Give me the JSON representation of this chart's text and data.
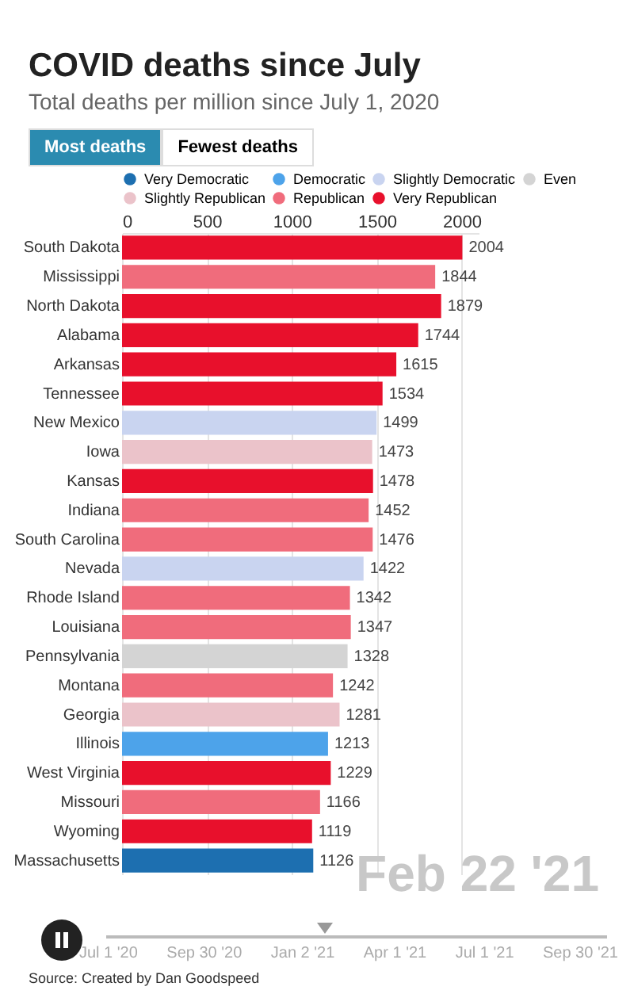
{
  "chart_data": {
    "type": "bar",
    "orientation": "horizontal",
    "title": "COVID deaths since July",
    "subtitle": "Total deaths per million since July 1, 2020",
    "categories": [
      "South Dakota",
      "Mississippi",
      "North Dakota",
      "Alabama",
      "Arkansas",
      "Tennessee",
      "New Mexico",
      "Iowa",
      "Kansas",
      "Indiana",
      "South Carolina",
      "Nevada",
      "Rhode Island",
      "Louisiana",
      "Pennsylvania",
      "Montana",
      "Georgia",
      "Illinois",
      "West Virginia",
      "Missouri",
      "Wyoming",
      "Massachusetts"
    ],
    "series": [
      {
        "name": "Very Democratic",
        "color": "#1d6fb0",
        "values": [
          null,
          null,
          null,
          null,
          null,
          null,
          null,
          null,
          null,
          null,
          null,
          null,
          null,
          null,
          null,
          null,
          null,
          null,
          null,
          null,
          null,
          1126
        ]
      },
      {
        "name": "Democratic",
        "color": "#4da3ea",
        "values": [
          null,
          null,
          null,
          null,
          null,
          null,
          null,
          null,
          null,
          null,
          null,
          null,
          null,
          null,
          null,
          null,
          null,
          1213,
          null,
          null,
          null,
          null
        ]
      },
      {
        "name": "Slightly Democratic",
        "color": "#c9d4f0",
        "values": [
          null,
          null,
          null,
          null,
          null,
          null,
          1499,
          null,
          null,
          null,
          null,
          1422,
          null,
          null,
          null,
          null,
          null,
          null,
          null,
          null,
          null,
          null
        ]
      },
      {
        "name": "Even",
        "color": "#d4d4d4",
        "values": [
          null,
          null,
          null,
          null,
          null,
          null,
          null,
          null,
          null,
          null,
          null,
          null,
          null,
          null,
          1328,
          null,
          null,
          null,
          null,
          null,
          null,
          null
        ]
      },
      {
        "name": "Slightly Republican",
        "color": "#ebc3ca",
        "values": [
          null,
          null,
          null,
          null,
          null,
          null,
          null,
          1473,
          null,
          null,
          null,
          null,
          null,
          null,
          null,
          null,
          1281,
          null,
          null,
          null,
          null,
          null
        ]
      },
      {
        "name": "Republican",
        "color": "#f06c7c",
        "values": [
          null,
          1844,
          null,
          null,
          null,
          null,
          null,
          null,
          null,
          1452,
          1476,
          null,
          1342,
          1347,
          null,
          1242,
          null,
          null,
          null,
          1166,
          null,
          null
        ]
      },
      {
        "name": "Very Republican",
        "color": "#e8102c",
        "values": [
          2004,
          null,
          1879,
          1744,
          1615,
          1534,
          null,
          null,
          1478,
          null,
          null,
          null,
          null,
          null,
          null,
          null,
          null,
          null,
          1229,
          null,
          1119,
          null
        ]
      }
    ],
    "xlim": [
      0,
      2100
    ],
    "xticks": [
      0,
      500,
      1000,
      1500,
      2000
    ],
    "grid": "x",
    "legend": "top",
    "data_labels": true,
    "annotations": [
      "Most deaths",
      "Fewest deaths",
      "Feb 22 '21",
      "Jul 1 '20",
      "Sep 30 '20",
      "Jan 2 '21",
      "Apr 1 '21",
      "Jul 1 '21",
      "Sep 30 '21",
      "Source: Created by Dan Goodspeed"
    ]
  }
}
